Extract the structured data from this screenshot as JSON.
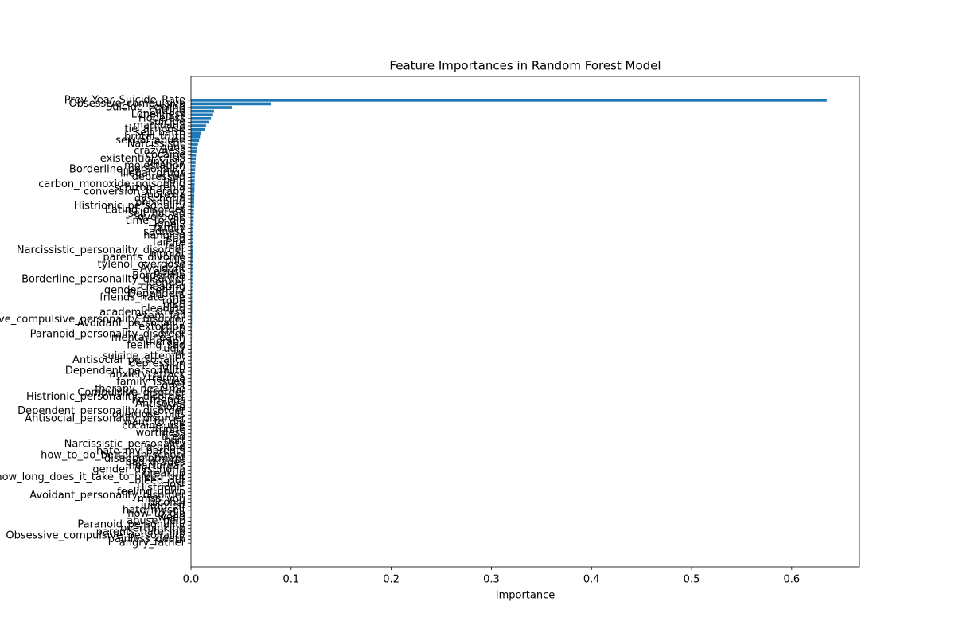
{
  "chart_data": {
    "type": "barh",
    "title": "Feature Importances in Random Forest Model",
    "xlabel": "Importance",
    "color": "#1f77b4",
    "categories": [
      "Prev_Year_Suicide_Rate",
      "Obsessive_compulsive",
      "Suicide_Feeling",
      "cutting",
      "Loneliness",
      "Hopeless",
      "suicide",
      "marijuana",
      "tie_a_noose",
      "self_harm",
      "brutal_truth",
      "sexual_abuse",
      "Narcissistic",
      "guns",
      "crazyness",
      "cocaine",
      "existential_crisis",
      "anxiety",
      "molestation",
      "Borderline_personality",
      "illegal_drugs",
      "depressed",
      "pain",
      "carbon_monoxide_poisoning",
      "schizophrenia",
      "conversion_therapy",
      "anorexia",
      "dysphoria",
      "poisoning",
      "Histrionic_personality",
      "Eating_disorder",
      "self_hatred",
      "overdose",
      "time_to_die",
      "lonely",
      "family",
      "sadness",
      "hanging",
      "sad",
      "failure",
      "fear",
      "Narcissistic_personality_disorder",
      "bipolar",
      "parents_divorce",
      "pills",
      "tylenol_overdose",
      "Avoidant",
      "abuse",
      "Borderline",
      "Borderline_personality_disorder",
      "gender",
      "cheating",
      "gender_identity",
      "Dependent",
      "friends_hate_me",
      "rope",
      "ptsd",
      "bleeding",
      "academic_stress",
      "exam_fail",
      "Obsessive_compulsive_personality_disorder",
      "Avoidant_personality",
      "extortion",
      "knife",
      "Paranoid_personality_disorder",
      "mental_health",
      "therapy",
      "feeling_sad",
      "ugly",
      "fat",
      "suicide_attempt",
      "Antisocial_personality",
      "depression",
      "jump",
      "Dependent_personality",
      "anxiety_attack",
      "trauma",
      "family_issues",
      "grief",
      "therapy_near_me",
      "Compulsive_disorder",
      "Histrionic_personality_disorder",
      "no_friends",
      "Antisocial",
      "alone",
      "Dependent_personality_disorder",
      "overdose_pills",
      "Antisocial_personality_disorder",
      "want_to_die",
      "cocaine_use",
      "bridge",
      "worthless",
      "tired",
      "hurt",
      "Narcissistic_personality",
      "Paranoid",
      "hate_my_parents",
      "how_to_do_better_in_school",
      "disappointment",
      "bad_grades",
      "heartbreak",
      "gender_dysphoria",
      "breakup",
      "how_long_does_it_take_to_bleed_out",
      "bleed_out",
      "lost",
      "Histrionic",
      "feeling_down",
      "Avoidant_personality_disorder",
      "miss_you",
      "alcohol",
      "jump_off",
      "hate_myself",
      "how_to_die",
      "weed",
      "abuse_help",
      "Paranoid_personality",
      "overthinking",
      "parents_hate_me",
      "Obsessive_compulsive_personality",
      "painless_death",
      "angry_father"
    ],
    "values": [
      0.635,
      0.08,
      0.041,
      0.023,
      0.022,
      0.02,
      0.018,
      0.015,
      0.014,
      0.01,
      0.009,
      0.008,
      0.007,
      0.0062,
      0.0055,
      0.005,
      0.0048,
      0.0046,
      0.0044,
      0.0042,
      0.004,
      0.0038,
      0.0037,
      0.0036,
      0.0035,
      0.0034,
      0.0033,
      0.0032,
      0.0031,
      0.003,
      0.0029,
      0.0028,
      0.0027,
      0.0026,
      0.0025,
      0.0024,
      0.0023,
      0.0022,
      0.0021,
      0.002,
      0.0019,
      0.0018,
      0.0018,
      0.0017,
      0.0017,
      0.0016,
      0.0016,
      0.0015,
      0.0015,
      0.0014,
      0.0014,
      0.0013,
      0.0013,
      0.0012,
      0.0012,
      0.0012,
      0.0011,
      0.0011,
      0.0011,
      0.001,
      0.001,
      0.001,
      0.0009,
      0.0009,
      0.0009,
      0.0009,
      0.0008,
      0.0008,
      0.0008,
      0.0008,
      0.0007,
      0.0007,
      0.0007,
      0.0007,
      0.0007,
      0.0006,
      0.0006,
      0.0006,
      0.0006,
      0.0006,
      0.0006,
      0.0006,
      0.0005,
      0.0005,
      0.0005,
      0.0005,
      0.0005,
      0.0005,
      0.0005,
      0.0005,
      0.0005,
      0.0005,
      0.0004,
      0.0004,
      0.0004,
      0.0004,
      0.0004,
      0.0004,
      0.0004,
      0.0004,
      0.0004,
      0.0004,
      0.0003,
      0.0003,
      0.0003,
      0.0003,
      0.0003,
      0.0003,
      0.0003,
      0.0003,
      0.0003,
      0.0003,
      0.0003,
      0.0003,
      0.0002,
      0.0002,
      0.0002,
      0.0002,
      0.0002,
      0.0002,
      0.0002,
      0.0001
    ],
    "xlim": [
      0,
      0.6677
    ],
    "xticks": [
      {
        "value": 0,
        "label": "0.0"
      },
      {
        "value": 0.1,
        "label": "0.1"
      },
      {
        "value": 0.2,
        "label": "0.2"
      },
      {
        "value": 0.3,
        "label": "0.3"
      },
      {
        "value": 0.4,
        "label": "0.4"
      },
      {
        "value": 0.5,
        "label": "0.5"
      },
      {
        "value": 0.6,
        "label": "0.6"
      }
    ]
  }
}
